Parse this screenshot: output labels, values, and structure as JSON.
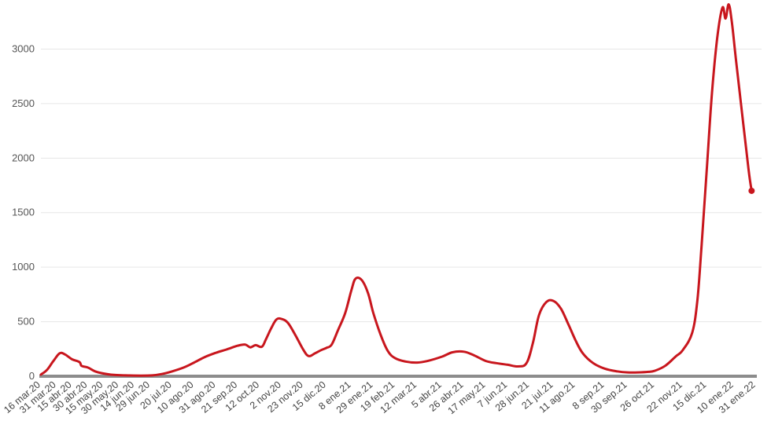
{
  "colors": {
    "line": "#c8161d",
    "grid": "#e6e6e6",
    "baseline": "#8c8c8c",
    "text": "#555555"
  },
  "chart_data": {
    "type": "line",
    "title": "",
    "xlabel": "",
    "ylabel": "",
    "ylim": [
      0,
      3450
    ],
    "yticks": [
      0,
      500,
      1000,
      1500,
      2000,
      2500,
      3000
    ],
    "grid": "horizontal",
    "legend": "none",
    "xtick_labels": [
      {
        "date": "2020-03-16",
        "label": "16 mar.20"
      },
      {
        "date": "2020-03-31",
        "label": "31 mar.20"
      },
      {
        "date": "2020-04-15",
        "label": "15 abr.20"
      },
      {
        "date": "2020-04-30",
        "label": "30 abr.20"
      },
      {
        "date": "2020-05-15",
        "label": "15 may.20"
      },
      {
        "date": "2020-05-30",
        "label": "30 may.20"
      },
      {
        "date": "2020-06-14",
        "label": "14 jun.20"
      },
      {
        "date": "2020-06-29",
        "label": "29 jun.20"
      },
      {
        "date": "2020-07-20",
        "label": "20 jul.20"
      },
      {
        "date": "2020-08-10",
        "label": "10 ago.20"
      },
      {
        "date": "2020-08-31",
        "label": "31 ago.20"
      },
      {
        "date": "2020-09-21",
        "label": "21 sep.20"
      },
      {
        "date": "2020-10-12",
        "label": "12 oct.20"
      },
      {
        "date": "2020-11-02",
        "label": "2 nov.20"
      },
      {
        "date": "2020-11-23",
        "label": "23 nov.20"
      },
      {
        "date": "2020-12-15",
        "label": "15 dic.20"
      },
      {
        "date": "2021-01-08",
        "label": "8 ene.21"
      },
      {
        "date": "2021-01-29",
        "label": "29 ene.21"
      },
      {
        "date": "2021-02-19",
        "label": "19 feb.21"
      },
      {
        "date": "2021-03-12",
        "label": "12 mar.21"
      },
      {
        "date": "2021-04-05",
        "label": "5 abr.21"
      },
      {
        "date": "2021-04-26",
        "label": "26 abr.21"
      },
      {
        "date": "2021-05-17",
        "label": "17 may.21"
      },
      {
        "date": "2021-06-07",
        "label": "7 jun.21"
      },
      {
        "date": "2021-06-28",
        "label": "28 jun.21"
      },
      {
        "date": "2021-07-21",
        "label": "21 jul.21"
      },
      {
        "date": "2021-08-11",
        "label": "11 ago.21"
      },
      {
        "date": "2021-09-08",
        "label": "8 sep.21"
      },
      {
        "date": "2021-09-30",
        "label": "30 sep.21"
      },
      {
        "date": "2021-10-26",
        "label": "26 oct.21"
      },
      {
        "date": "2021-11-22",
        "label": "22 nov.21"
      },
      {
        "date": "2021-12-15",
        "label": "15 dic.21"
      },
      {
        "date": "2022-01-10",
        "label": "10 ene.22"
      },
      {
        "date": "2022-01-31",
        "label": "31 ene.22"
      }
    ],
    "series": [
      {
        "points": [
          [
            "2020-03-16",
            15
          ],
          [
            "2020-03-22",
            60
          ],
          [
            "2020-03-28",
            140
          ],
          [
            "2020-04-03",
            210
          ],
          [
            "2020-04-08",
            200
          ],
          [
            "2020-04-15",
            155
          ],
          [
            "2020-04-22",
            130
          ],
          [
            "2020-04-24",
            95
          ],
          [
            "2020-04-30",
            80
          ],
          [
            "2020-05-07",
            45
          ],
          [
            "2020-05-15",
            25
          ],
          [
            "2020-05-25",
            12
          ],
          [
            "2020-06-05",
            8
          ],
          [
            "2020-06-20",
            6
          ],
          [
            "2020-07-01",
            8
          ],
          [
            "2020-07-10",
            20
          ],
          [
            "2020-07-20",
            45
          ],
          [
            "2020-07-31",
            80
          ],
          [
            "2020-08-10",
            125
          ],
          [
            "2020-08-20",
            175
          ],
          [
            "2020-08-31",
            215
          ],
          [
            "2020-09-10",
            245
          ],
          [
            "2020-09-21",
            280
          ],
          [
            "2020-09-28",
            290
          ],
          [
            "2020-10-03",
            265
          ],
          [
            "2020-10-08",
            285
          ],
          [
            "2020-10-14",
            270
          ],
          [
            "2020-10-18",
            340
          ],
          [
            "2020-10-23",
            440
          ],
          [
            "2020-10-28",
            520
          ],
          [
            "2020-11-02",
            525
          ],
          [
            "2020-11-08",
            490
          ],
          [
            "2020-11-15",
            380
          ],
          [
            "2020-11-23",
            240
          ],
          [
            "2020-11-28",
            185
          ],
          [
            "2020-12-04",
            210
          ],
          [
            "2020-12-10",
            240
          ],
          [
            "2020-12-15",
            260
          ],
          [
            "2020-12-20",
            290
          ],
          [
            "2020-12-26",
            420
          ],
          [
            "2021-01-02",
            580
          ],
          [
            "2021-01-08",
            790
          ],
          [
            "2021-01-12",
            895
          ],
          [
            "2021-01-18",
            880
          ],
          [
            "2021-01-24",
            760
          ],
          [
            "2021-01-29",
            580
          ],
          [
            "2021-02-05",
            380
          ],
          [
            "2021-02-12",
            230
          ],
          [
            "2021-02-19",
            165
          ],
          [
            "2021-03-01",
            135
          ],
          [
            "2021-03-12",
            125
          ],
          [
            "2021-03-22",
            140
          ],
          [
            "2021-04-05",
            180
          ],
          [
            "2021-04-15",
            220
          ],
          [
            "2021-04-26",
            225
          ],
          [
            "2021-05-06",
            190
          ],
          [
            "2021-05-17",
            140
          ],
          [
            "2021-05-27",
            120
          ],
          [
            "2021-06-07",
            105
          ],
          [
            "2021-06-17",
            90
          ],
          [
            "2021-06-25",
            120
          ],
          [
            "2021-07-01",
            300
          ],
          [
            "2021-07-07",
            560
          ],
          [
            "2021-07-14",
            680
          ],
          [
            "2021-07-21",
            690
          ],
          [
            "2021-07-28",
            620
          ],
          [
            "2021-08-04",
            480
          ],
          [
            "2021-08-11",
            330
          ],
          [
            "2021-08-18",
            210
          ],
          [
            "2021-08-28",
            120
          ],
          [
            "2021-09-08",
            70
          ],
          [
            "2021-09-20",
            45
          ],
          [
            "2021-09-30",
            35
          ],
          [
            "2021-10-10",
            35
          ],
          [
            "2021-10-20",
            40
          ],
          [
            "2021-10-26",
            50
          ],
          [
            "2021-11-05",
            95
          ],
          [
            "2021-11-15",
            180
          ],
          [
            "2021-11-22",
            240
          ],
          [
            "2021-12-01",
            400
          ],
          [
            "2021-12-06",
            700
          ],
          [
            "2021-12-10",
            1200
          ],
          [
            "2021-12-15",
            1900
          ],
          [
            "2021-12-20",
            2600
          ],
          [
            "2021-12-25",
            3100
          ],
          [
            "2021-12-30",
            3380
          ],
          [
            "2022-01-02",
            3280
          ],
          [
            "2022-01-05",
            3410
          ],
          [
            "2022-01-08",
            3250
          ],
          [
            "2022-01-12",
            2900
          ],
          [
            "2022-01-18",
            2400
          ],
          [
            "2022-01-24",
            1900
          ],
          [
            "2022-01-27",
            1700
          ]
        ]
      }
    ]
  }
}
